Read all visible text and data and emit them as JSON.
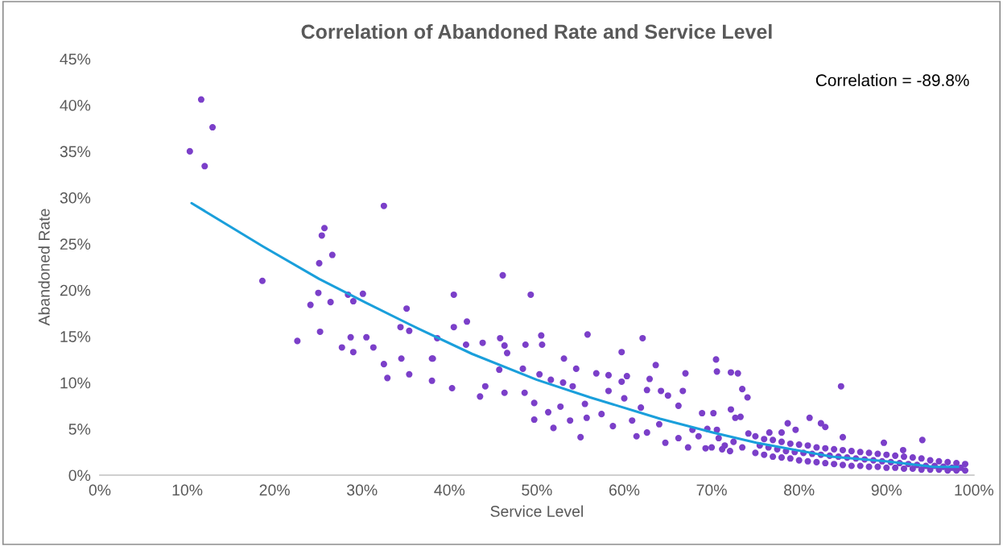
{
  "chart_data": {
    "type": "scatter",
    "title": "Correlation of Abandoned Rate and Service Level",
    "xlabel": "Service Level",
    "ylabel": "Abandoned Rate",
    "annotations": [
      "Correlation = -89.8%"
    ],
    "xlim": [
      0,
      100
    ],
    "ylim": [
      0,
      45
    ],
    "xticks": [
      {
        "value": 0,
        "label": "0%"
      },
      {
        "value": 10,
        "label": "10%"
      },
      {
        "value": 20,
        "label": "20%"
      },
      {
        "value": 30,
        "label": "30%"
      },
      {
        "value": 40,
        "label": "40%"
      },
      {
        "value": 50,
        "label": "50%"
      },
      {
        "value": 60,
        "label": "60%"
      },
      {
        "value": 70,
        "label": "70%"
      },
      {
        "value": 80,
        "label": "80%"
      },
      {
        "value": 90,
        "label": "90%"
      },
      {
        "value": 100,
        "label": "100%"
      }
    ],
    "yticks": [
      {
        "value": 0,
        "label": "0%"
      },
      {
        "value": 5,
        "label": "5%"
      },
      {
        "value": 10,
        "label": "10%"
      },
      {
        "value": 15,
        "label": "15%"
      },
      {
        "value": 20,
        "label": "20%"
      },
      {
        "value": 25,
        "label": "25%"
      },
      {
        "value": 30,
        "label": "30%"
      },
      {
        "value": 35,
        "label": "35%"
      },
      {
        "value": 40,
        "label": "40%"
      },
      {
        "value": 45,
        "label": "45%"
      }
    ],
    "grid": false,
    "legend": false,
    "marker": "circle",
    "series": [
      {
        "color": "#7b3fc9",
        "x": [
          11.6,
          12.9,
          10.3,
          12.0,
          32.5,
          25.7,
          25.4,
          26.6,
          25.1,
          18.6,
          25.0,
          24.1,
          26.4,
          28.4,
          29.0,
          30.1,
          22.6,
          25.2,
          28.7,
          27.7,
          29.0,
          30.5,
          31.3,
          32.5,
          32.9,
          35.1,
          34.4,
          35.4,
          34.5,
          35.4,
          38.0,
          38.0,
          46.1,
          40.5,
          49.3,
          42.0,
          40.5,
          38.6,
          38.1,
          40.3,
          41.9,
          43.8,
          43.5,
          44.1,
          45.8,
          46.3,
          46.6,
          45.7,
          46.3,
          48.7,
          50.5,
          50.6,
          48.4,
          48.6,
          49.7,
          49.7,
          50.3,
          51.6,
          51.3,
          51.9,
          53.1,
          53.0,
          52.7,
          54.5,
          54.1,
          53.8,
          55.8,
          55.0,
          55.5,
          55.7,
          56.8,
          58.2,
          58.2,
          57.4,
          58.7,
          59.7,
          59.7,
          60.3,
          60.0,
          60.9,
          62.1,
          61.4,
          61.9,
          62.6,
          62.9,
          63.6,
          62.6,
          64.2,
          65.0,
          64.0,
          64.7,
          67.0,
          66.7,
          66.2,
          66.2,
          67.3,
          67.8,
          70.5,
          70.6,
          72.2,
          73.0,
          73.5,
          74.1,
          68.9,
          70.2,
          70.6,
          69.3,
          71.2,
          72.1,
          72.2,
          73.3,
          84.8,
          81.2,
          82.5,
          83.0,
          94.1,
          89.7,
          91.9,
          85.0,
          78.7,
          76.6,
          78.0,
          79.6,
          72.7,
          70.8,
          71.5,
          72.5,
          73.5,
          74.2,
          69.5,
          68.5,
          70.0,
          75,
          76,
          77,
          78,
          79,
          80,
          81,
          82,
          83,
          84,
          85,
          86,
          87,
          88,
          89,
          90,
          91,
          92,
          93,
          94,
          95,
          96,
          97,
          98,
          99,
          75,
          76,
          77,
          78,
          79,
          80,
          81,
          82,
          83,
          84,
          85,
          86,
          87,
          88,
          89,
          90,
          91,
          92,
          93,
          94,
          95,
          96,
          97,
          98,
          99,
          75.5,
          76.5,
          77.5,
          78.5,
          79.5,
          80.5,
          81.5,
          82.5,
          83.5,
          84.5,
          85.5,
          86.5,
          87.5,
          88.5,
          89.5,
          90.5,
          91.5,
          92.5,
          93.5,
          94.5,
          95.5,
          96.5,
          97.5,
          98.5
        ],
        "values": [
          40.6,
          37.6,
          35.0,
          33.4,
          29.1,
          26.7,
          25.9,
          23.8,
          22.9,
          21.0,
          19.7,
          18.4,
          18.7,
          19.5,
          18.8,
          19.6,
          14.5,
          15.5,
          14.9,
          13.8,
          13.3,
          14.9,
          13.8,
          12.0,
          10.5,
          18.0,
          16.0,
          15.6,
          12.6,
          10.9,
          12.6,
          10.2,
          21.6,
          19.5,
          19.5,
          16.6,
          16.0,
          14.8,
          12.6,
          9.4,
          14.1,
          14.3,
          8.5,
          9.6,
          14.8,
          14.0,
          13.2,
          11.4,
          8.9,
          14.1,
          15.1,
          14.1,
          11.5,
          8.9,
          6.0,
          7.8,
          10.9,
          10.3,
          6.8,
          5.1,
          12.6,
          10.0,
          7.4,
          11.5,
          9.6,
          5.9,
          15.2,
          4.1,
          7.7,
          6.2,
          11.0,
          10.8,
          9.1,
          6.6,
          5.3,
          13.3,
          10.1,
          10.7,
          8.3,
          5.9,
          14.8,
          4.2,
          7.3,
          9.2,
          10.4,
          11.9,
          4.6,
          9.1,
          8.6,
          5.5,
          3.5,
          11.0,
          9.1,
          7.5,
          4.0,
          3.0,
          4.9,
          12.5,
          11.2,
          11.1,
          11.0,
          9.3,
          8.4,
          6.7,
          6.7,
          4.9,
          2.9,
          2.8,
          2.6,
          7.1,
          6.3,
          9.6,
          6.2,
          5.6,
          5.2,
          3.8,
          3.5,
          2.7,
          4.1,
          5.6,
          4.6,
          4.6,
          4.9,
          6.2,
          4.0,
          3.2,
          3.6,
          3.0,
          4.5,
          5.0,
          4.2,
          3.0,
          4.2,
          3.9,
          3.8,
          3.6,
          3.4,
          3.3,
          3.2,
          3.0,
          2.9,
          2.8,
          2.7,
          2.6,
          2.5,
          2.4,
          2.3,
          2.2,
          2.1,
          2.0,
          1.9,
          1.8,
          1.6,
          1.5,
          1.4,
          1.3,
          1.2,
          2.4,
          2.2,
          2.0,
          1.9,
          1.8,
          1.6,
          1.5,
          1.4,
          1.3,
          1.2,
          1.1,
          1.0,
          1.0,
          0.9,
          0.9,
          0.8,
          0.8,
          0.7,
          0.7,
          0.6,
          0.6,
          0.6,
          0.5,
          0.5,
          0.5,
          3.2,
          3.0,
          2.8,
          2.6,
          2.5,
          2.4,
          2.3,
          2.2,
          2.1,
          2.0,
          1.9,
          1.8,
          1.7,
          1.6,
          1.5,
          1.4,
          1.3,
          1.2,
          1.1,
          1.0,
          1.0,
          0.9,
          0.8,
          0.8
        ]
      },
      {
        "type": "line",
        "color": "#1a9fdb",
        "marker": "none",
        "line_style": "solid",
        "x": [
          10.5,
          18.7,
          25.1,
          30.3,
          36.5,
          42.6,
          50.0,
          56.1,
          64.1,
          70.2,
          75.1,
          83.7,
          89.9,
          95.4,
          98.2
        ],
        "values": [
          29.4,
          24.7,
          21.2,
          18.7,
          15.8,
          13.1,
          10.3,
          8.4,
          6.1,
          4.6,
          3.5,
          2.0,
          1.5,
          0.9,
          0.9
        ]
      }
    ]
  }
}
